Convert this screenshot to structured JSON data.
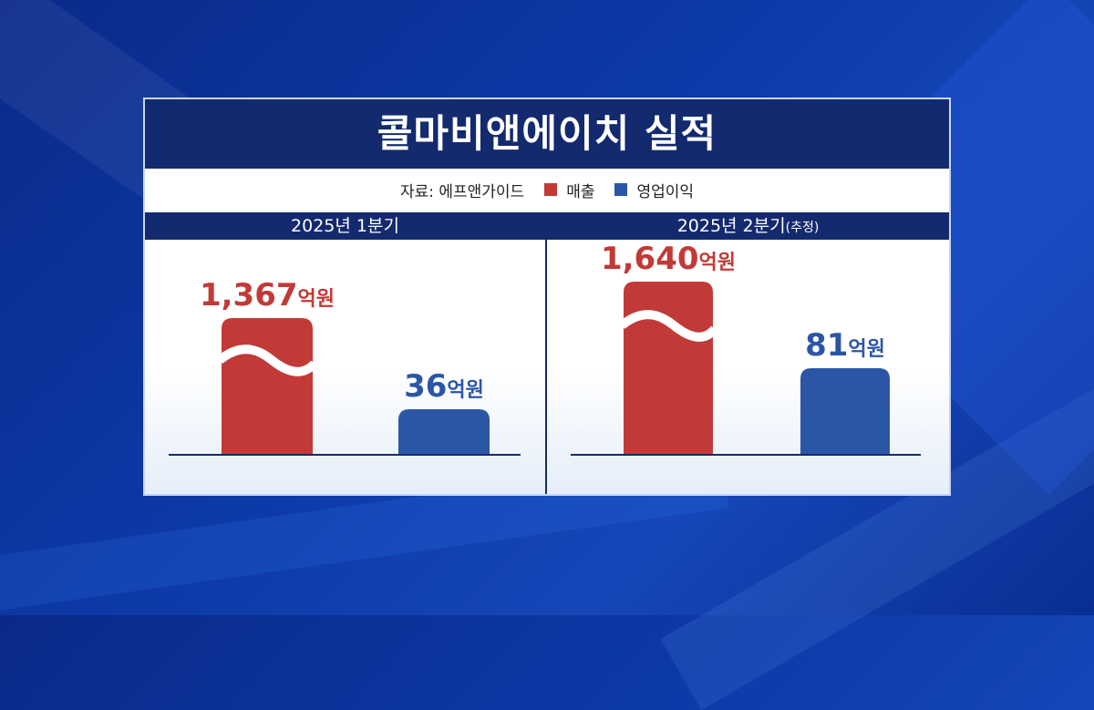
{
  "title": "콜마비앤에이치 실적",
  "source": "자료: 에프앤가이드",
  "legend": [
    {
      "label": "매출",
      "color": "#c13a37"
    },
    {
      "label": "영업이익",
      "color": "#2b56a6"
    }
  ],
  "colors": {
    "header": "#132a6e",
    "sales": "#c13a37",
    "profit": "#2b56a6"
  },
  "chart_data": [
    {
      "type": "bar",
      "panel_label": "2025년 1분기",
      "panel_note": "",
      "categories": [
        "매출",
        "영업이익"
      ],
      "values": [
        1367,
        36
      ],
      "value_labels": [
        "1,367",
        "36"
      ],
      "unit": "억원",
      "axis_break_on": "매출",
      "title": "",
      "xlabel": "",
      "ylabel": ""
    },
    {
      "type": "bar",
      "panel_label": "2025년 2분기",
      "panel_note": "(추정)",
      "categories": [
        "매출",
        "영업이익"
      ],
      "values": [
        1640,
        81
      ],
      "value_labels": [
        "1,640",
        "81"
      ],
      "unit": "억원",
      "axis_break_on": "매출",
      "title": "",
      "xlabel": "",
      "ylabel": ""
    }
  ]
}
